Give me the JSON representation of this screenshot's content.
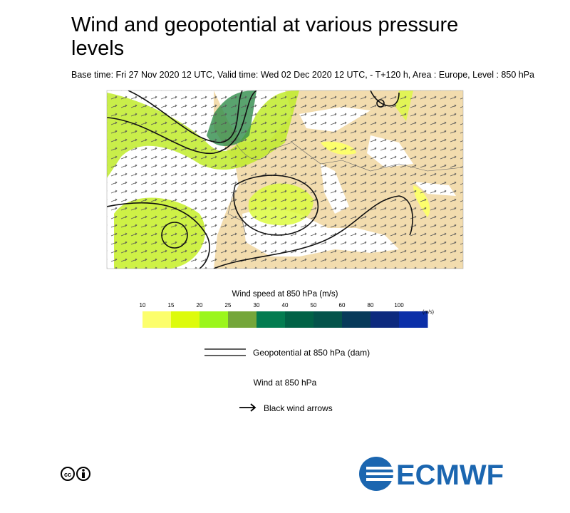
{
  "header": {
    "title": "Wind and geopotential at various pressure levels",
    "subtitle": "Base time: Fri 27 Nov 2020 12 UTC, Valid time: Wed 02 Dec 2020 12 UTC, - T+120 h, Area : Europe, Level : 850 hPa"
  },
  "colorbar": {
    "title": "Wind speed at 850 hPa (m/s)",
    "unit": "(m/s)",
    "ticks": [
      10,
      15,
      20,
      25,
      30,
      40,
      50,
      60,
      80,
      100
    ],
    "colors": [
      "#fcfe6c",
      "#ddfb0c",
      "#9bf61c",
      "#74a63a",
      "#037c50",
      "#016246",
      "#04534a",
      "#073a5a",
      "#0d2a7e",
      "#0b2fa8"
    ]
  },
  "legend": {
    "geopotential": "Geopotential at 850 hPa (dam)",
    "wind_title": "Wind at 850 hPa",
    "wind_arrows": "Black wind arrows"
  },
  "logo": {
    "text": "ECMWF"
  }
}
